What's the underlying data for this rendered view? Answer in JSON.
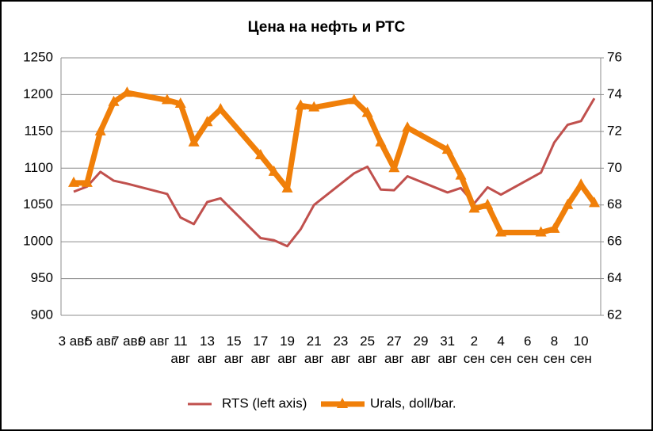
{
  "chart_data": {
    "type": "line",
    "title": "Цена на нефть и РТС",
    "categories": [
      "3 авг",
      null,
      "5 авг",
      null,
      "7 авг",
      null,
      "9 авг",
      null,
      "11 авг",
      null,
      "13 авг",
      null,
      "15 авг",
      null,
      "17 авг",
      null,
      "19 авг",
      null,
      "21 авг",
      null,
      "23 авг",
      null,
      "25 авг",
      null,
      "27 авг",
      null,
      "29 авг",
      null,
      "31 авг",
      null,
      "2 сен",
      null,
      "4 сен",
      null,
      "6 сен",
      null,
      "8 сен",
      null,
      "10 сен",
      null
    ],
    "series": [
      {
        "name": "RTS (left axis)",
        "color": "#c0504d",
        "axis": "y",
        "values": [
          1068,
          1075,
          1095,
          1083,
          1079,
          null,
          null,
          1065,
          1033,
          1024,
          1054,
          1059,
          null,
          null,
          1005,
          1002,
          994,
          1017,
          1050,
          null,
          null,
          1093,
          1102,
          1071,
          1070,
          1089,
          null,
          null,
          1067,
          1073,
          1052,
          1074,
          1064,
          null,
          null,
          1094,
          1135,
          1159,
          1164,
          1195
        ]
      },
      {
        "name": "Urals, doll/bar.",
        "color": "#f07f09",
        "axis": "y2",
        "values": [
          69.2,
          69.2,
          72.0,
          73.6,
          74.1,
          null,
          null,
          73.7,
          73.5,
          71.4,
          72.5,
          73.2,
          null,
          null,
          70.7,
          69.8,
          68.9,
          73.4,
          73.3,
          null,
          null,
          73.7,
          73.0,
          71.4,
          70.0,
          72.2,
          null,
          null,
          71.0,
          69.6,
          67.8,
          68.0,
          66.5,
          null,
          null,
          66.5,
          66.7,
          68.0,
          69.1,
          68.1
        ]
      }
    ],
    "ylim": [
      900,
      1250
    ],
    "yticks": [
      900,
      950,
      1000,
      1050,
      1100,
      1150,
      1200,
      1250
    ],
    "y2lim": [
      62,
      76
    ],
    "y2ticks": [
      62,
      64,
      66,
      68,
      70,
      72,
      74,
      76
    ],
    "grid": true,
    "legend": "bottom"
  }
}
